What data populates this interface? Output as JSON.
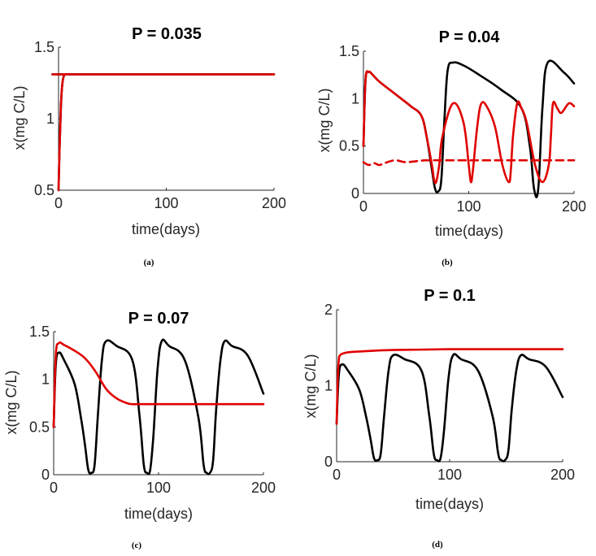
{
  "chart_data": [
    {
      "id": "a",
      "type": "line",
      "title": "P = 0.035",
      "caption": "(a)",
      "xlabel": "time(days)",
      "ylabel": "x(mg C/L)",
      "xlim": [
        0,
        200
      ],
      "ylim": [
        0.5,
        1.5
      ],
      "xticks": [
        0,
        100,
        200
      ],
      "xtick_labels": [
        "0",
        "100",
        "200"
      ],
      "yticks": [
        0.5,
        1,
        1.5
      ],
      "ytick_labels": [
        "0.5",
        "1",
        "1.5"
      ],
      "series": [
        {
          "name": "black",
          "color": "#000000",
          "dash": false,
          "x": [
            0,
            1,
            2,
            3,
            4,
            5,
            6,
            8,
            10,
            200
          ],
          "y": [
            0.5,
            0.8,
            1.05,
            1.2,
            1.27,
            1.3,
            1.31,
            1.31,
            1.31,
            1.31
          ]
        },
        {
          "name": "red",
          "color": "#e00000",
          "dash": false,
          "x": [
            0,
            1,
            2,
            3,
            4,
            5,
            6,
            8,
            10,
            200
          ],
          "y": [
            0.5,
            0.8,
            1.05,
            1.2,
            1.27,
            1.3,
            1.31,
            1.31,
            1.31,
            1.31
          ]
        }
      ]
    },
    {
      "id": "b",
      "type": "line",
      "title": "P = 0.04",
      "caption": "(b)",
      "xlabel": "time(days)",
      "ylabel": "x(mg C/L)",
      "xlim": [
        0,
        200
      ],
      "ylim": [
        0,
        1.5
      ],
      "xticks": [
        0,
        100,
        200
      ],
      "xtick_labels": [
        "0",
        "100",
        "200"
      ],
      "yticks": [
        0,
        0.5,
        1,
        1.5
      ],
      "ytick_labels": [
        "0",
        "0.5",
        "1",
        "1.5"
      ],
      "series": [
        {
          "name": "black",
          "color": "#000000",
          "dash": false,
          "x": [
            0,
            2,
            5,
            8,
            15,
            30,
            45,
            55,
            60,
            65,
            68,
            71,
            74,
            77,
            80,
            85,
            95,
            110,
            130,
            150,
            158,
            162,
            166,
            170,
            175,
            190,
            200
          ],
          "y": [
            0.5,
            1.2,
            1.28,
            1.26,
            1.18,
            1.05,
            0.92,
            0.82,
            0.6,
            0.25,
            0.05,
            0.02,
            0.15,
            0.8,
            1.3,
            1.38,
            1.35,
            1.25,
            1.1,
            0.9,
            0.5,
            0.05,
            0.05,
            0.9,
            1.38,
            1.28,
            1.16
          ]
        },
        {
          "name": "red",
          "color": "#e00000",
          "dash": false,
          "x": [
            0,
            2,
            5,
            8,
            15,
            30,
            45,
            55,
            60,
            65,
            67,
            69,
            72,
            75,
            85,
            95,
            100,
            102,
            104,
            108,
            112,
            118,
            125,
            132,
            138,
            140,
            142,
            146,
            150,
            155,
            163,
            170,
            176,
            178,
            180,
            184,
            188,
            195,
            200
          ],
          "y": [
            0.5,
            1.2,
            1.28,
            1.26,
            1.18,
            1.05,
            0.92,
            0.82,
            0.6,
            0.3,
            0.15,
            0.12,
            0.3,
            0.6,
            0.95,
            0.75,
            0.3,
            0.12,
            0.25,
            0.7,
            0.95,
            0.9,
            0.7,
            0.3,
            0.12,
            0.25,
            0.6,
            0.95,
            0.9,
            0.75,
            0.3,
            0.12,
            0.3,
            0.6,
            0.95,
            0.9,
            0.85,
            0.95,
            0.92
          ]
        },
        {
          "name": "red-dashed",
          "color": "#e00000",
          "dash": true,
          "x": [
            0,
            5,
            10,
            15,
            20,
            30,
            40,
            50,
            60,
            80,
            100,
            150,
            200
          ],
          "y": [
            0.33,
            0.3,
            0.32,
            0.3,
            0.32,
            0.35,
            0.33,
            0.34,
            0.35,
            0.35,
            0.35,
            0.35,
            0.35
          ]
        }
      ]
    },
    {
      "id": "c",
      "type": "line",
      "title": "P = 0.07",
      "caption": "(c)",
      "xlabel": "time(days)",
      "ylabel": "x(mg C/L)",
      "xlim": [
        0,
        200
      ],
      "ylim": [
        0,
        1.5
      ],
      "xticks": [
        0,
        100,
        200
      ],
      "xtick_labels": [
        "0",
        "100",
        "200"
      ],
      "yticks": [
        0,
        0.5,
        1,
        1.5
      ],
      "ytick_labels": [
        "0",
        "0.5",
        "1",
        "1.5"
      ],
      "series": [
        {
          "name": "black",
          "color": "#000000",
          "dash": false,
          "x": [
            0,
            2,
            5,
            10,
            20,
            26,
            30,
            33,
            36,
            39,
            42,
            46,
            50,
            60,
            75,
            82,
            86,
            89,
            92,
            95,
            99,
            103,
            110,
            125,
            138,
            143,
            146,
            149,
            152,
            155,
            159,
            163,
            170,
            185,
            200
          ],
          "y": [
            0.5,
            1.15,
            1.28,
            1.2,
            0.95,
            0.6,
            0.3,
            0.05,
            0.02,
            0.1,
            0.6,
            1.2,
            1.4,
            1.35,
            1.2,
            0.6,
            0.1,
            0.02,
            0.05,
            0.4,
            1.1,
            1.4,
            1.35,
            1.2,
            0.6,
            0.1,
            0.02,
            0.02,
            0.15,
            0.7,
            1.2,
            1.4,
            1.35,
            1.25,
            0.85
          ]
        },
        {
          "name": "red",
          "color": "#e00000",
          "dash": false,
          "x": [
            0,
            2,
            5,
            10,
            20,
            30,
            40,
            50,
            60,
            70,
            75,
            80,
            100,
            150,
            200
          ],
          "y": [
            0.5,
            1.25,
            1.38,
            1.36,
            1.3,
            1.22,
            1.08,
            0.9,
            0.8,
            0.75,
            0.74,
            0.74,
            0.74,
            0.74,
            0.74
          ]
        }
      ]
    },
    {
      "id": "d",
      "type": "line",
      "title": "P = 0.1",
      "caption": "(d)",
      "xlabel": "time(days)",
      "ylabel": "x(mg C/L)",
      "xlim": [
        0,
        200
      ],
      "ylim": [
        0,
        2
      ],
      "xticks": [
        0,
        100,
        200
      ],
      "xtick_labels": [
        "0",
        "100",
        "200"
      ],
      "yticks": [
        0,
        1,
        2
      ],
      "ytick_labels": [
        "0",
        "1",
        "2"
      ],
      "series": [
        {
          "name": "black",
          "color": "#000000",
          "dash": false,
          "x": [
            0,
            2,
            5,
            10,
            20,
            26,
            30,
            33,
            36,
            39,
            42,
            46,
            50,
            60,
            75,
            82,
            86,
            89,
            92,
            95,
            99,
            103,
            110,
            125,
            138,
            143,
            146,
            149,
            152,
            155,
            159,
            163,
            170,
            185,
            200
          ],
          "y": [
            0.5,
            1.15,
            1.28,
            1.2,
            0.95,
            0.6,
            0.3,
            0.05,
            0.02,
            0.1,
            0.6,
            1.2,
            1.4,
            1.35,
            1.2,
            0.6,
            0.1,
            0.02,
            0.05,
            0.4,
            1.1,
            1.4,
            1.35,
            1.2,
            0.6,
            0.1,
            0.02,
            0.02,
            0.15,
            0.7,
            1.2,
            1.4,
            1.35,
            1.25,
            0.85
          ]
        },
        {
          "name": "red",
          "color": "#e00000",
          "dash": false,
          "x": [
            0,
            1,
            2,
            3,
            5,
            10,
            20,
            50,
            100,
            150,
            200
          ],
          "y": [
            0.5,
            1.1,
            1.35,
            1.4,
            1.42,
            1.44,
            1.45,
            1.47,
            1.48,
            1.48,
            1.48
          ]
        }
      ]
    }
  ]
}
